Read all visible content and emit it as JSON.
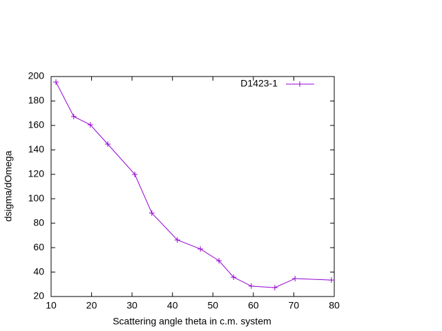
{
  "chart_data": {
    "type": "line",
    "xlabel": "Scattering angle theta in c.m. system",
    "ylabel": "dsigma/dOmega",
    "x": [
      11.2,
      15.6,
      19.7,
      24.0,
      30.7,
      34.9,
      41.2,
      46.9,
      51.5,
      55.1,
      59.5,
      65.3,
      70.3,
      79.3
    ],
    "series": [
      {
        "name": "D1423-1",
        "color": "#9400d3",
        "values": [
          195.5,
          167.3,
          160.5,
          144.7,
          119.9,
          88.3,
          66.3,
          58.9,
          49.3,
          35.8,
          28.5,
          27.3,
          34.7,
          33.5
        ]
      }
    ],
    "xlim": [
      10,
      80
    ],
    "xticks": [
      10,
      20,
      30,
      40,
      50,
      60,
      70,
      80
    ],
    "ylim": [
      20,
      200
    ],
    "yticks": [
      20,
      40,
      60,
      80,
      100,
      120,
      140,
      160,
      180,
      200
    ],
    "grid": false,
    "legend": "top-right"
  }
}
